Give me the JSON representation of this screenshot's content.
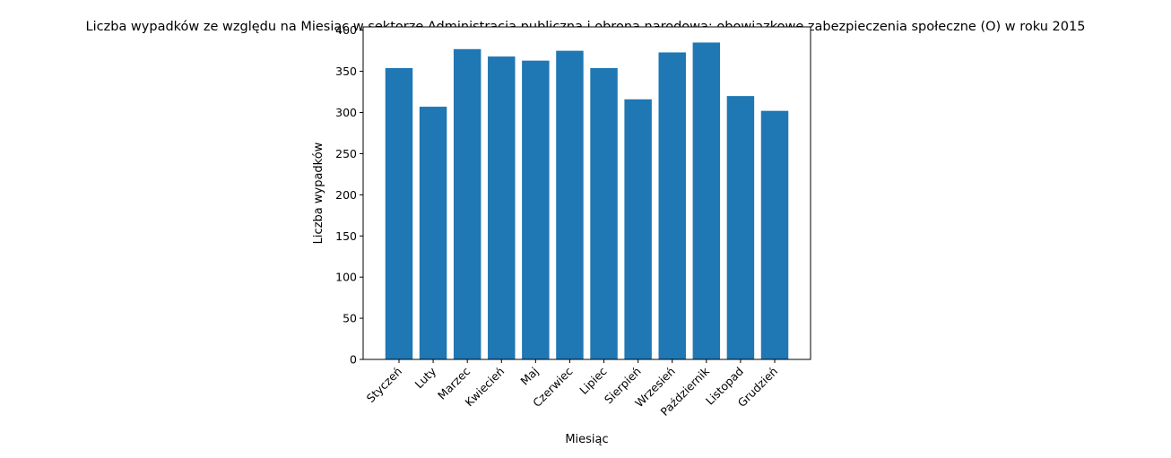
{
  "chart_data": {
    "type": "bar",
    "title": "Liczba wypadków ze względu na Miesiąc w sektorze Administracja publiczna i obrona narodowa; obowiązkowe zabezpieczenia społeczne (O) w roku 2015",
    "xlabel": "Miesiąc",
    "ylabel": "Liczba wypadków",
    "categories": [
      "Styczeń",
      "Luty",
      "Marzec",
      "Kwiecień",
      "Maj",
      "Czerwiec",
      "Lipiec",
      "Sierpień",
      "Wrzesień",
      "Październik",
      "Listopad",
      "Grudzień"
    ],
    "values": [
      354,
      307,
      377,
      368,
      363,
      375,
      354,
      316,
      373,
      385,
      320,
      302
    ],
    "ylim": [
      0,
      404
    ],
    "yticks": [
      0,
      50,
      100,
      150,
      200,
      250,
      300,
      350,
      400
    ],
    "bar_color": "#1f77b4",
    "grid": false,
    "legend": "none"
  }
}
